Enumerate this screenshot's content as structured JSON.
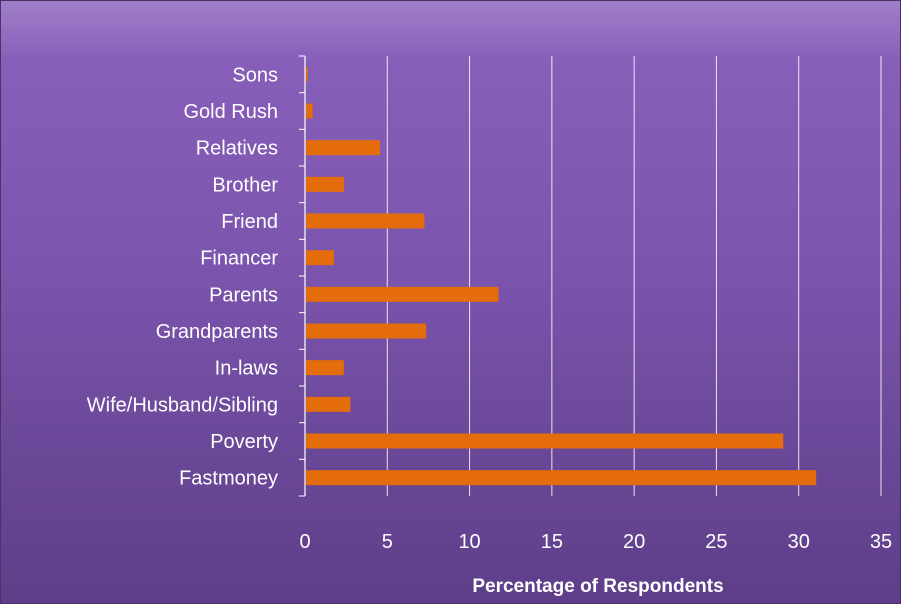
{
  "chart_data": {
    "type": "bar",
    "orientation": "horizontal",
    "categories": [
      "Sons",
      "Gold Rush",
      "Relatives",
      "Brother",
      "Friend",
      "Financer",
      "Parents",
      "Grandparents",
      "In-laws",
      "Wife/Husband/Sibling",
      "Poverty",
      "Fastmoney"
    ],
    "values": [
      0.1,
      0.4,
      4.5,
      2.3,
      7.2,
      1.7,
      11.7,
      7.3,
      2.3,
      2.7,
      29.0,
      31.0
    ],
    "xlabel": "Percentage of Respondents",
    "ylabel": "",
    "xlim": [
      0,
      35
    ],
    "xticks": [
      "0",
      "5",
      "10",
      "15",
      "20",
      "25",
      "30",
      "35"
    ],
    "grid": "vertical",
    "legend": "none",
    "colors": {
      "bar": "#e46c0a",
      "background": "#7b54ad",
      "gridline": "#ffffff",
      "text": "#ffffff"
    }
  }
}
